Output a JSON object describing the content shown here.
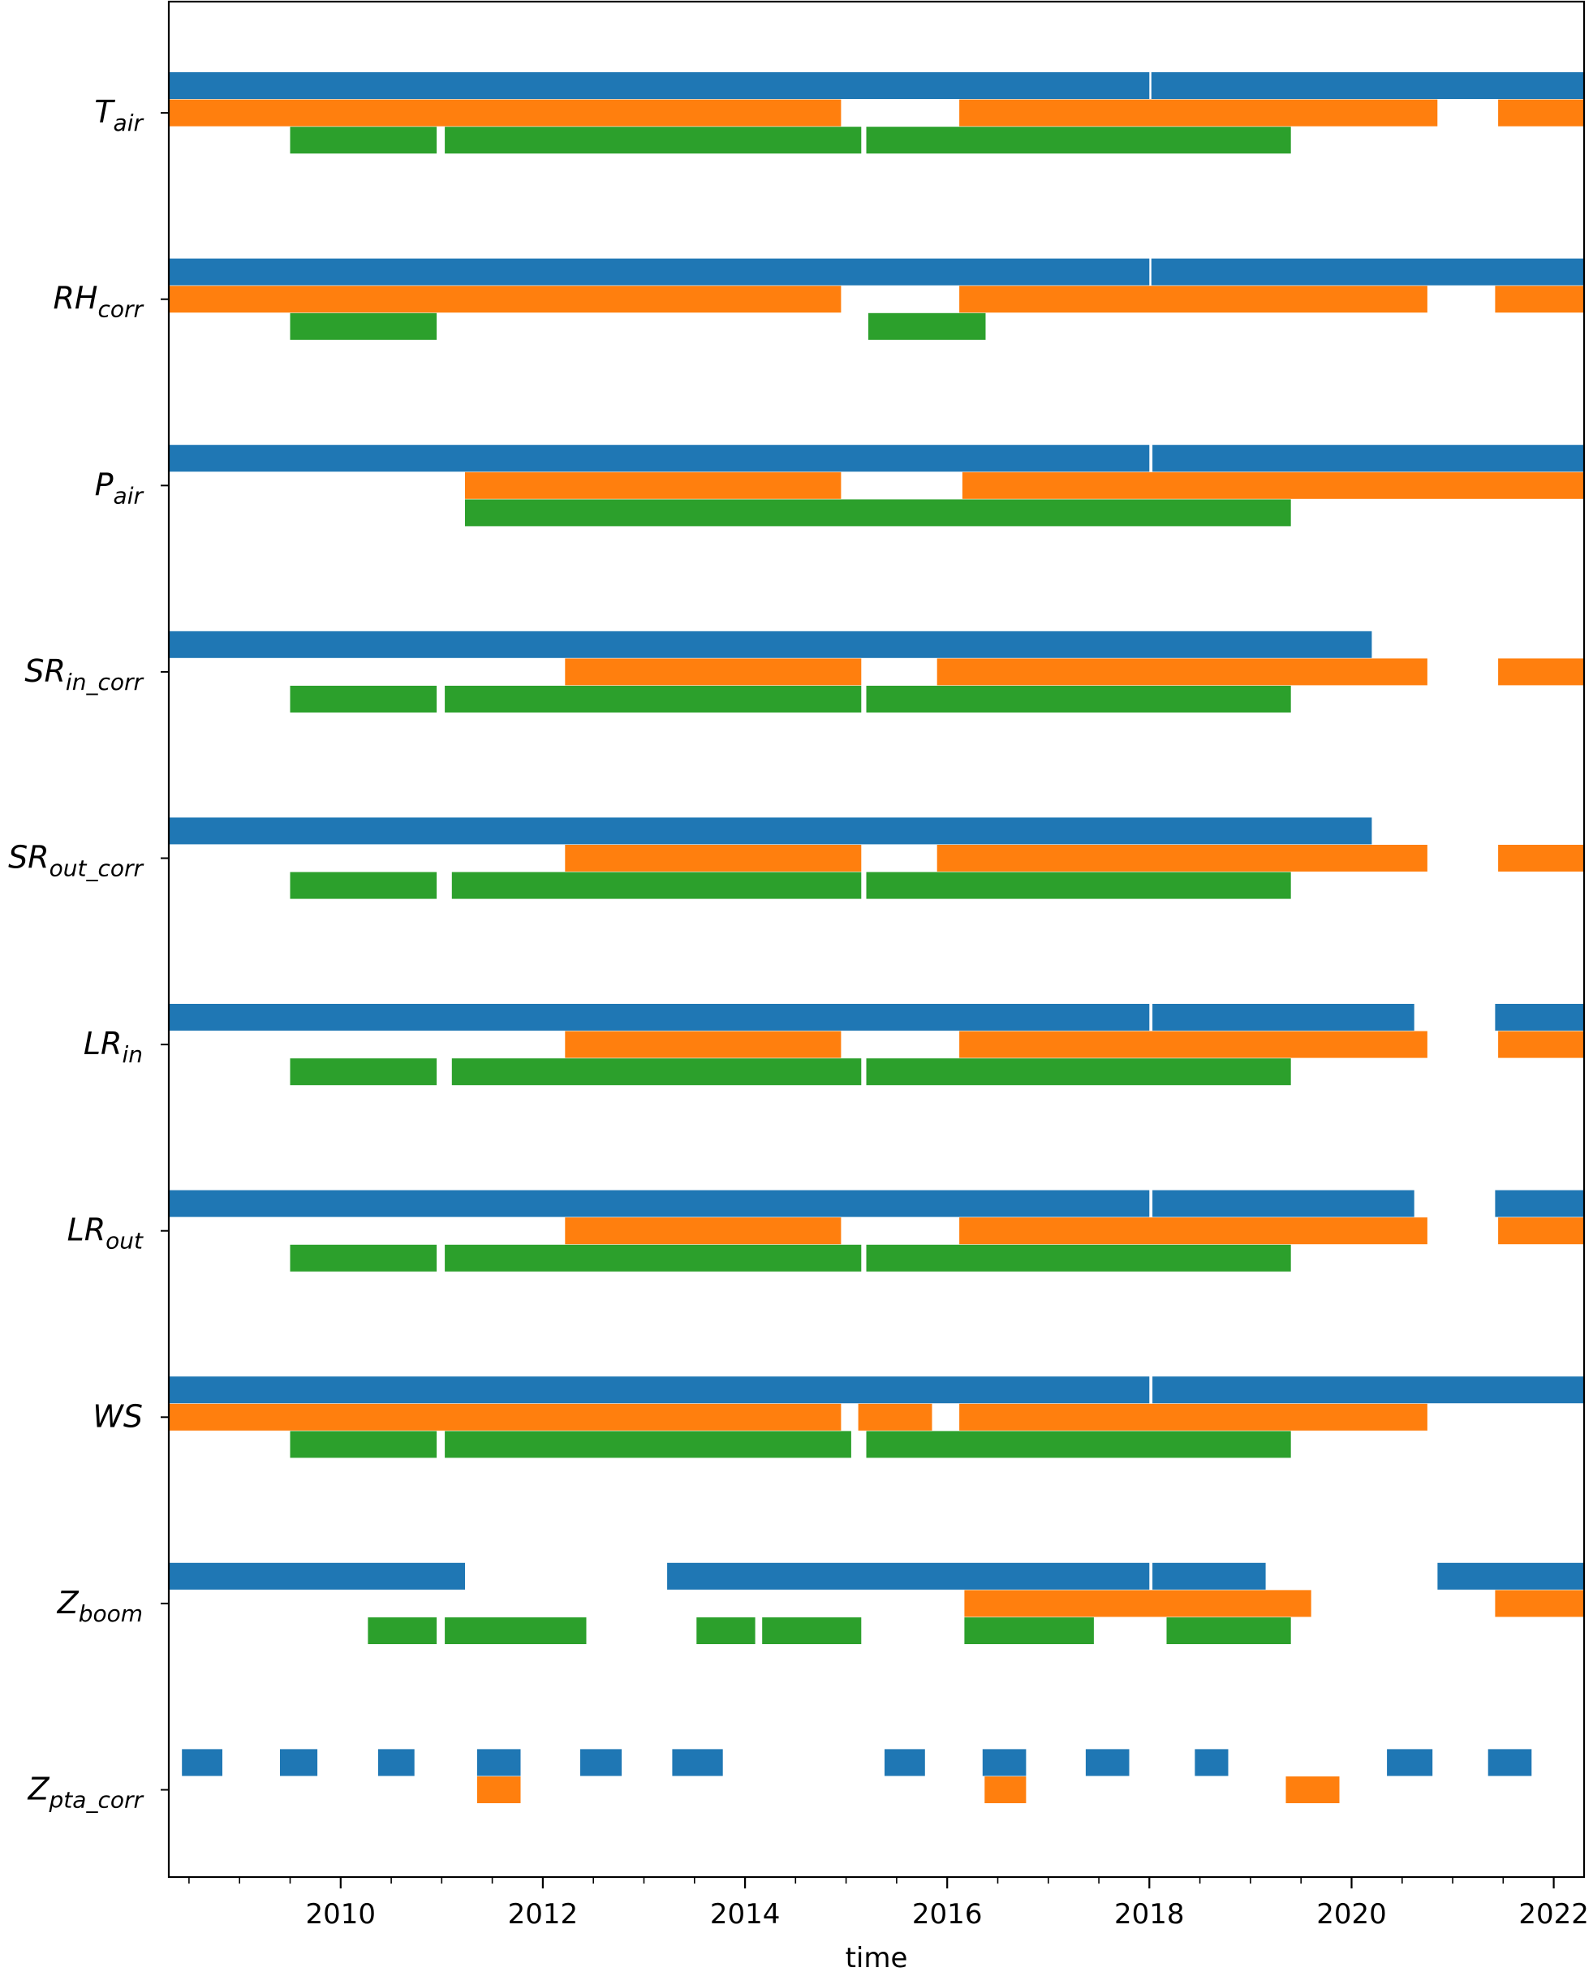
{
  "chart_data": {
    "type": "timeline",
    "xlabel": "time",
    "xlim": [
      2008.3,
      2022.3
    ],
    "xticks": [
      "2010",
      "2012",
      "2014",
      "2016",
      "2018",
      "2020",
      "2022"
    ],
    "grid": false,
    "colors": [
      "#1f77b4",
      "#ff7f0e",
      "#2ca02c"
    ],
    "variables": [
      {
        "main": "T",
        "sub": "air",
        "series": [
          [
            [
              2008.3,
              2018.0
            ],
            [
              2018.02,
              2022.3
            ]
          ],
          [
            [
              2008.3,
              2014.95
            ],
            [
              2016.12,
              2020.85
            ],
            [
              2021.45,
              2022.3
            ]
          ],
          [
            [
              2009.5,
              2010.95
            ],
            [
              2011.03,
              2015.15
            ],
            [
              2015.2,
              2019.4
            ]
          ]
        ]
      },
      {
        "main": "RH",
        "sub": "corr",
        "series": [
          [
            [
              2008.3,
              2018.0
            ],
            [
              2018.02,
              2022.3
            ]
          ],
          [
            [
              2008.3,
              2014.95
            ],
            [
              2016.12,
              2020.75
            ],
            [
              2021.42,
              2022.3
            ]
          ],
          [
            [
              2009.5,
              2010.95
            ],
            [
              2015.22,
              2016.38
            ]
          ]
        ]
      },
      {
        "main": "P",
        "sub": "air",
        "series": [
          [
            [
              2008.3,
              2018.0
            ],
            [
              2018.03,
              2022.3
            ]
          ],
          [
            [
              2011.23,
              2014.95
            ],
            [
              2016.15,
              2022.3
            ]
          ],
          [
            [
              2011.23,
              2019.4
            ]
          ]
        ]
      },
      {
        "main": "SR",
        "sub": "in_corr",
        "series": [
          [
            [
              2008.3,
              2020.2
            ]
          ],
          [
            [
              2012.22,
              2015.15
            ],
            [
              2015.9,
              2020.75
            ],
            [
              2021.45,
              2022.3
            ]
          ],
          [
            [
              2009.5,
              2010.95
            ],
            [
              2011.03,
              2015.15
            ],
            [
              2015.2,
              2019.4
            ]
          ]
        ]
      },
      {
        "main": "SR",
        "sub": "out_corr",
        "series": [
          [
            [
              2008.3,
              2020.2
            ]
          ],
          [
            [
              2012.22,
              2015.15
            ],
            [
              2015.9,
              2020.75
            ],
            [
              2021.45,
              2022.3
            ]
          ],
          [
            [
              2009.5,
              2010.95
            ],
            [
              2011.1,
              2015.15
            ],
            [
              2015.2,
              2019.4
            ]
          ]
        ]
      },
      {
        "main": "LR",
        "sub": "in",
        "series": [
          [
            [
              2008.3,
              2018.0
            ],
            [
              2018.03,
              2020.62
            ],
            [
              2021.42,
              2022.3
            ]
          ],
          [
            [
              2012.22,
              2014.95
            ],
            [
              2016.12,
              2020.75
            ],
            [
              2021.45,
              2022.3
            ]
          ],
          [
            [
              2009.5,
              2010.95
            ],
            [
              2011.1,
              2015.15
            ],
            [
              2015.2,
              2019.4
            ]
          ]
        ]
      },
      {
        "main": "LR",
        "sub": "out",
        "series": [
          [
            [
              2008.3,
              2018.0
            ],
            [
              2018.03,
              2020.62
            ],
            [
              2021.42,
              2022.3
            ]
          ],
          [
            [
              2012.22,
              2014.95
            ],
            [
              2016.12,
              2020.75
            ],
            [
              2021.45,
              2022.3
            ]
          ],
          [
            [
              2009.5,
              2010.95
            ],
            [
              2011.03,
              2015.15
            ],
            [
              2015.2,
              2019.4
            ]
          ]
        ]
      },
      {
        "main": "WS",
        "sub": "",
        "series": [
          [
            [
              2008.3,
              2018.0
            ],
            [
              2018.03,
              2022.3
            ]
          ],
          [
            [
              2008.3,
              2014.95
            ],
            [
              2015.12,
              2015.85
            ],
            [
              2016.12,
              2020.75
            ]
          ],
          [
            [
              2009.5,
              2010.95
            ],
            [
              2011.03,
              2015.05
            ],
            [
              2015.2,
              2019.4
            ]
          ]
        ]
      },
      {
        "main": "Z",
        "sub": "boom",
        "series": [
          [
            [
              2008.3,
              2011.23
            ],
            [
              2013.23,
              2018.0
            ],
            [
              2018.03,
              2019.15
            ],
            [
              2020.85,
              2022.3
            ]
          ],
          [
            [
              2016.17,
              2019.6
            ],
            [
              2021.42,
              2022.3
            ]
          ],
          [
            [
              2010.27,
              2010.95
            ],
            [
              2011.03,
              2012.43
            ],
            [
              2013.52,
              2014.1
            ],
            [
              2014.17,
              2015.15
            ],
            [
              2016.17,
              2017.45
            ],
            [
              2018.17,
              2019.4
            ]
          ]
        ]
      },
      {
        "main": "Z",
        "sub": "pta_corr",
        "series": [
          [
            [
              2008.43,
              2008.83
            ],
            [
              2009.4,
              2009.77
            ],
            [
              2010.37,
              2010.73
            ],
            [
              2011.35,
              2011.78
            ],
            [
              2012.37,
              2012.78
            ],
            [
              2013.28,
              2013.78
            ],
            [
              2015.38,
              2015.78
            ],
            [
              2016.35,
              2016.78
            ],
            [
              2017.37,
              2017.8
            ],
            [
              2018.45,
              2018.78
            ],
            [
              2020.35,
              2020.8
            ],
            [
              2021.35,
              2021.78
            ]
          ],
          [
            [
              2011.35,
              2011.78
            ],
            [
              2016.37,
              2016.78
            ],
            [
              2019.35,
              2019.88
            ]
          ],
          []
        ]
      }
    ]
  }
}
